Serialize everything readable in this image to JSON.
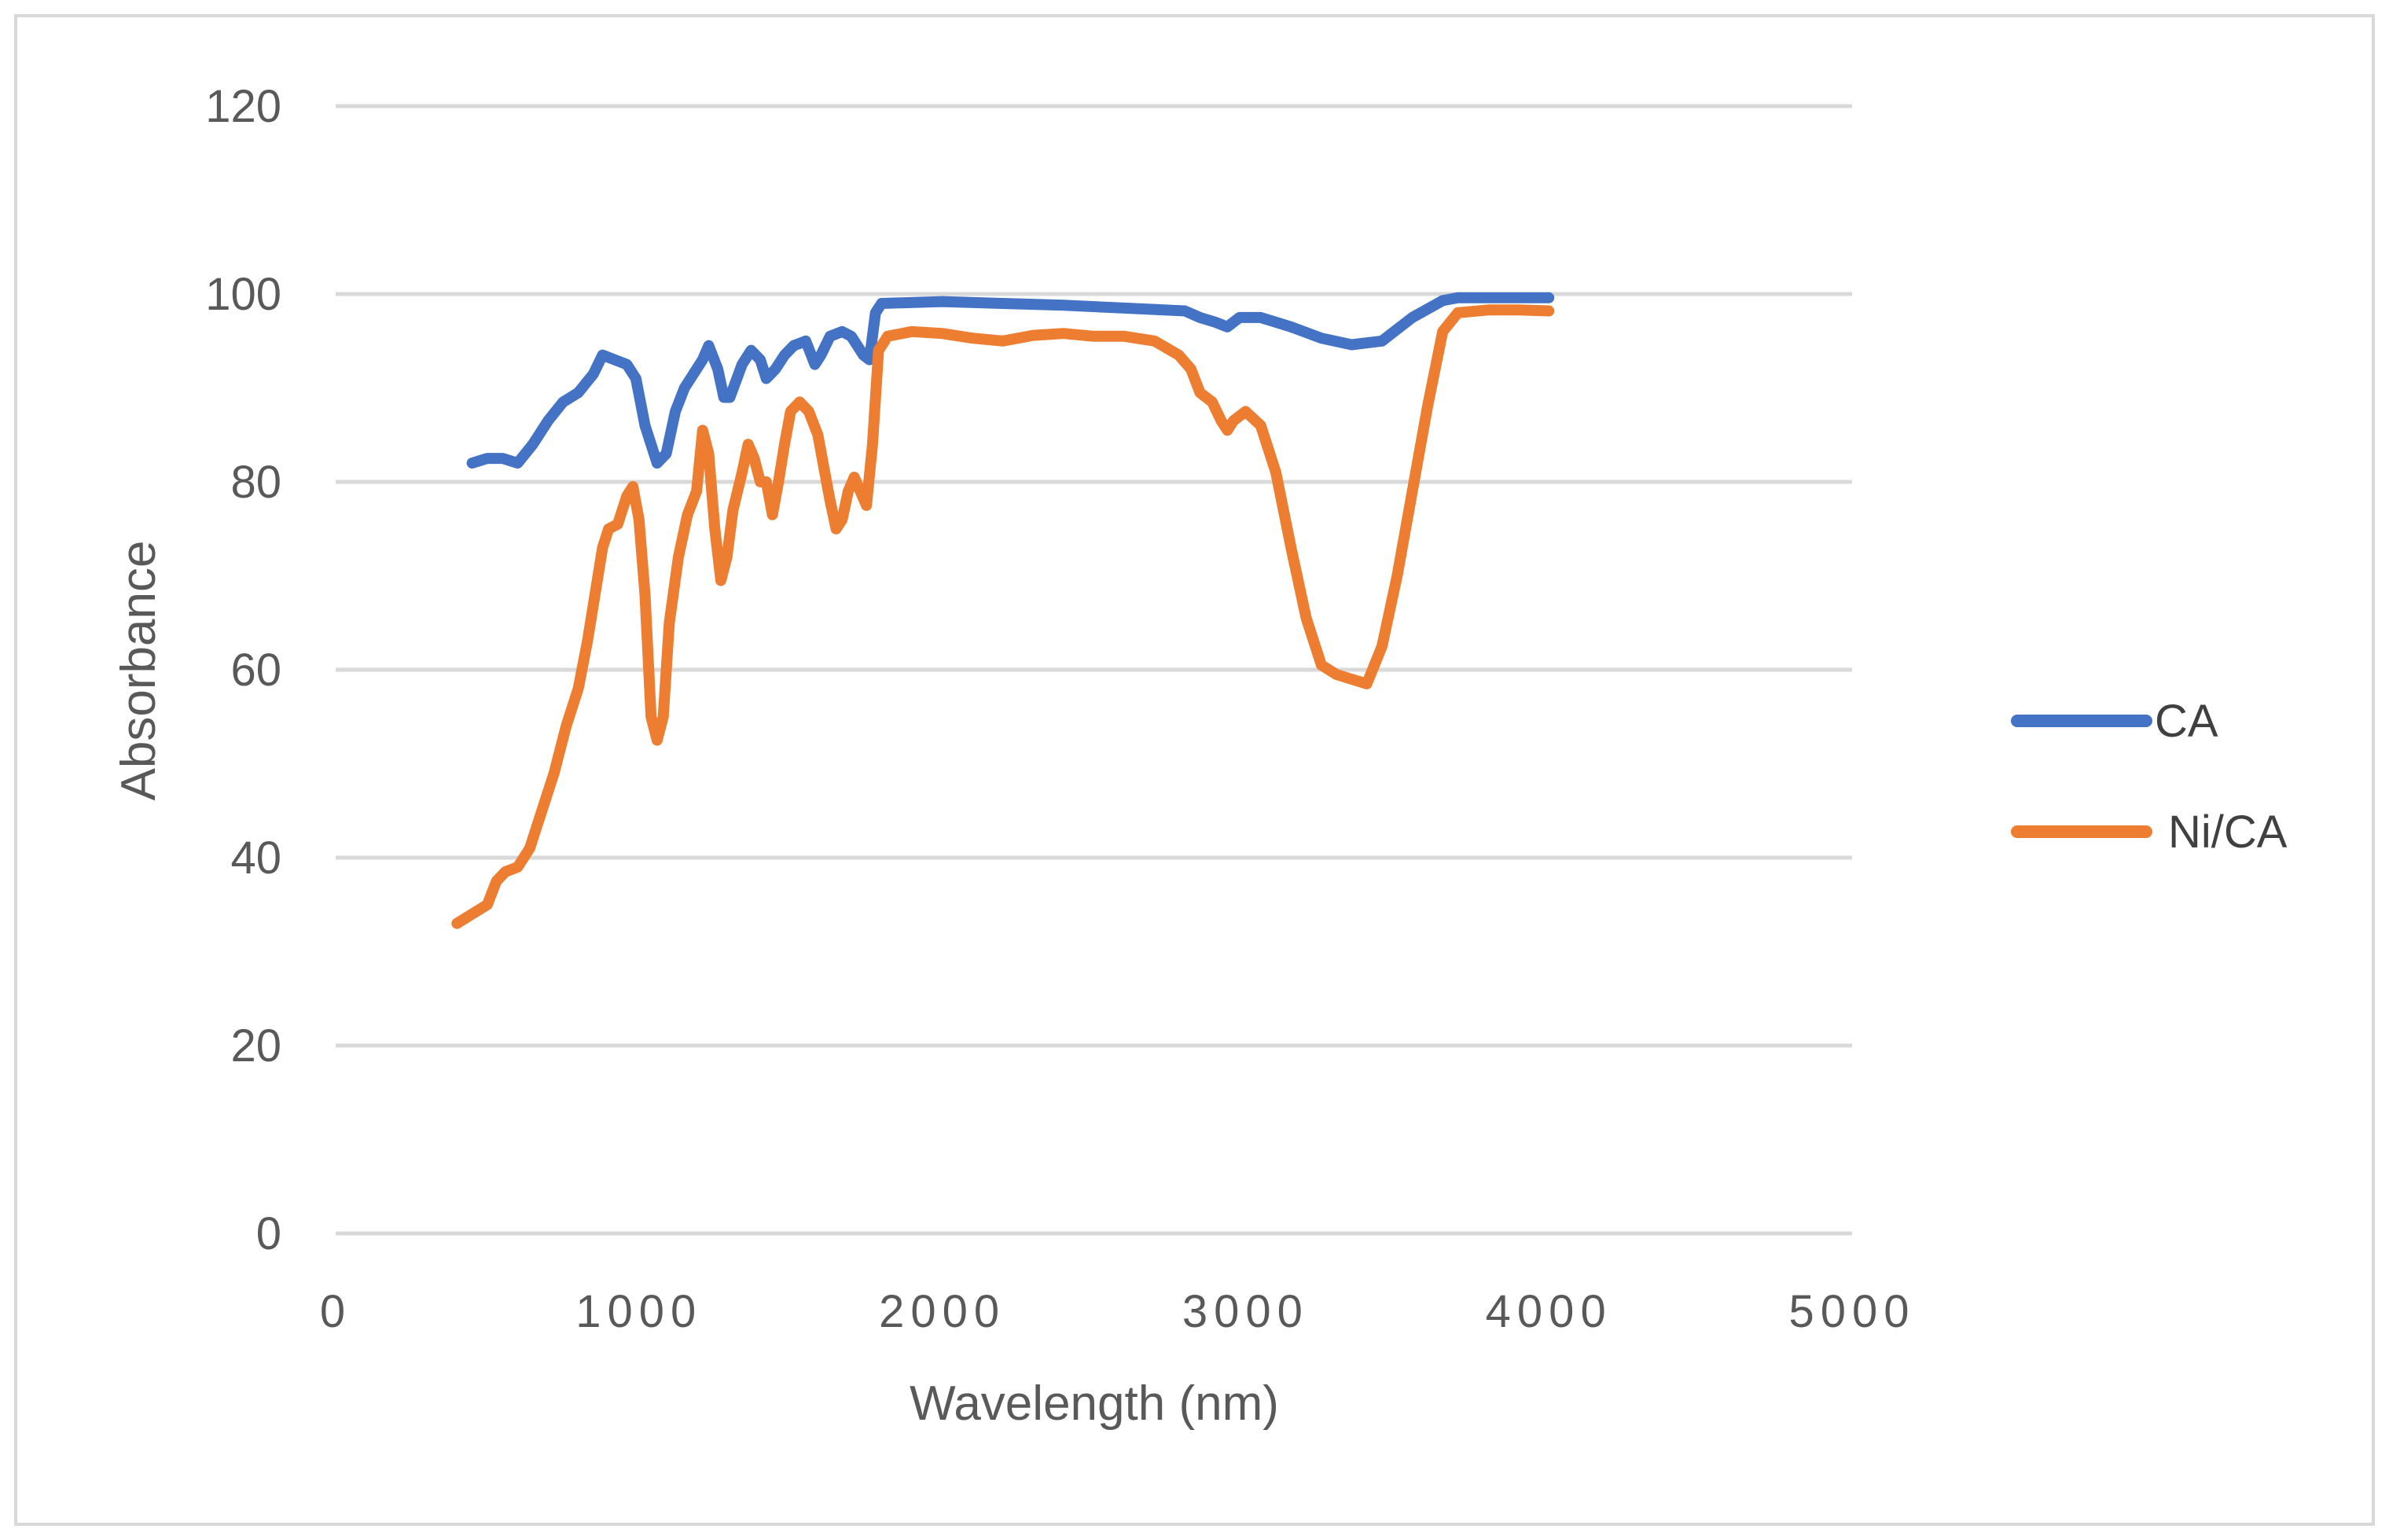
{
  "chart_data": {
    "type": "line",
    "title": "",
    "xlabel": "Wavelength (nm)",
    "ylabel": "Absorbance",
    "xlim": [
      0,
      5000
    ],
    "ylim": [
      0,
      120
    ],
    "xticks": [
      0,
      1000,
      2000,
      3000,
      4000,
      5000
    ],
    "yticks": [
      0,
      20,
      40,
      60,
      80,
      100,
      120
    ],
    "grid": "horizontal",
    "legend_position": "right",
    "series": [
      {
        "name": "CA",
        "color": "#4472c4",
        "points": [
          [
            450,
            82
          ],
          [
            500,
            82.5
          ],
          [
            550,
            82.5
          ],
          [
            600,
            82
          ],
          [
            650,
            84
          ],
          [
            700,
            86.5
          ],
          [
            750,
            88.5
          ],
          [
            800,
            89.5
          ],
          [
            850,
            91.5
          ],
          [
            880,
            93.5
          ],
          [
            920,
            93
          ],
          [
            960,
            92.5
          ],
          [
            990,
            91
          ],
          [
            1020,
            86
          ],
          [
            1060,
            82
          ],
          [
            1090,
            83
          ],
          [
            1120,
            87.5
          ],
          [
            1150,
            90
          ],
          [
            1180,
            91.5
          ],
          [
            1210,
            93
          ],
          [
            1230,
            94.5
          ],
          [
            1260,
            92
          ],
          [
            1280,
            89
          ],
          [
            1300,
            89
          ],
          [
            1340,
            92.5
          ],
          [
            1370,
            94
          ],
          [
            1400,
            93
          ],
          [
            1420,
            91
          ],
          [
            1450,
            92
          ],
          [
            1480,
            93.5
          ],
          [
            1510,
            94.5
          ],
          [
            1550,
            95
          ],
          [
            1580,
            92.5
          ],
          [
            1600,
            93.5
          ],
          [
            1630,
            95.5
          ],
          [
            1670,
            96
          ],
          [
            1700,
            95.5
          ],
          [
            1740,
            93.5
          ],
          [
            1760,
            93
          ],
          [
            1780,
            98
          ],
          [
            1800,
            99
          ],
          [
            2000,
            99.2
          ],
          [
            2200,
            99
          ],
          [
            2400,
            98.8
          ],
          [
            2600,
            98.5
          ],
          [
            2800,
            98.2
          ],
          [
            2850,
            97.5
          ],
          [
            2900,
            97
          ],
          [
            2940,
            96.5
          ],
          [
            2980,
            97.5
          ],
          [
            3050,
            97.5
          ],
          [
            3150,
            96.5
          ],
          [
            3250,
            95.3
          ],
          [
            3350,
            94.6
          ],
          [
            3450,
            95
          ],
          [
            3550,
            97.5
          ],
          [
            3650,
            99.3
          ],
          [
            3700,
            99.6
          ],
          [
            3900,
            99.6
          ],
          [
            4000,
            99.6
          ]
        ]
      },
      {
        "name": "Ni/CA",
        "color": "#ed7d31",
        "points": [
          [
            400,
            33
          ],
          [
            450,
            34
          ],
          [
            500,
            35
          ],
          [
            530,
            37.5
          ],
          [
            560,
            38.5
          ],
          [
            600,
            39
          ],
          [
            640,
            41
          ],
          [
            680,
            45
          ],
          [
            720,
            49
          ],
          [
            760,
            54
          ],
          [
            800,
            58
          ],
          [
            830,
            63
          ],
          [
            860,
            69
          ],
          [
            880,
            73
          ],
          [
            900,
            75
          ],
          [
            930,
            75.5
          ],
          [
            960,
            78.5
          ],
          [
            980,
            79.5
          ],
          [
            1000,
            76
          ],
          [
            1020,
            68
          ],
          [
            1040,
            55
          ],
          [
            1060,
            52.5
          ],
          [
            1080,
            55
          ],
          [
            1100,
            65
          ],
          [
            1130,
            72
          ],
          [
            1160,
            76.5
          ],
          [
            1190,
            79
          ],
          [
            1210,
            85.5
          ],
          [
            1230,
            83
          ],
          [
            1250,
            75
          ],
          [
            1270,
            69.5
          ],
          [
            1290,
            72
          ],
          [
            1310,
            77
          ],
          [
            1340,
            81
          ],
          [
            1360,
            84
          ],
          [
            1380,
            82.5
          ],
          [
            1400,
            80
          ],
          [
            1420,
            80
          ],
          [
            1440,
            76.5
          ],
          [
            1460,
            80
          ],
          [
            1480,
            84
          ],
          [
            1500,
            87.5
          ],
          [
            1530,
            88.5
          ],
          [
            1560,
            87.5
          ],
          [
            1590,
            85
          ],
          [
            1610,
            81.5
          ],
          [
            1630,
            78
          ],
          [
            1650,
            75
          ],
          [
            1670,
            76
          ],
          [
            1690,
            79
          ],
          [
            1710,
            80.5
          ],
          [
            1730,
            79
          ],
          [
            1750,
            77.5
          ],
          [
            1770,
            84
          ],
          [
            1790,
            94
          ],
          [
            1820,
            95.5
          ],
          [
            1900,
            96
          ],
          [
            2000,
            95.8
          ],
          [
            2100,
            95.3
          ],
          [
            2200,
            95
          ],
          [
            2300,
            95.6
          ],
          [
            2400,
            95.8
          ],
          [
            2500,
            95.5
          ],
          [
            2600,
            95.5
          ],
          [
            2700,
            95
          ],
          [
            2780,
            93.5
          ],
          [
            2820,
            92
          ],
          [
            2850,
            89.5
          ],
          [
            2890,
            88.5
          ],
          [
            2920,
            86.5
          ],
          [
            2940,
            85.5
          ],
          [
            2960,
            86.5
          ],
          [
            3000,
            87.5
          ],
          [
            3050,
            86
          ],
          [
            3100,
            81
          ],
          [
            3150,
            73
          ],
          [
            3200,
            65.5
          ],
          [
            3250,
            60.5
          ],
          [
            3300,
            59.5
          ],
          [
            3350,
            59
          ],
          [
            3400,
            58.5
          ],
          [
            3450,
            62.5
          ],
          [
            3500,
            70
          ],
          [
            3550,
            79
          ],
          [
            3600,
            88
          ],
          [
            3650,
            96
          ],
          [
            3700,
            98
          ],
          [
            3800,
            98.3
          ],
          [
            3900,
            98.3
          ],
          [
            4000,
            98.2
          ]
        ]
      }
    ]
  }
}
